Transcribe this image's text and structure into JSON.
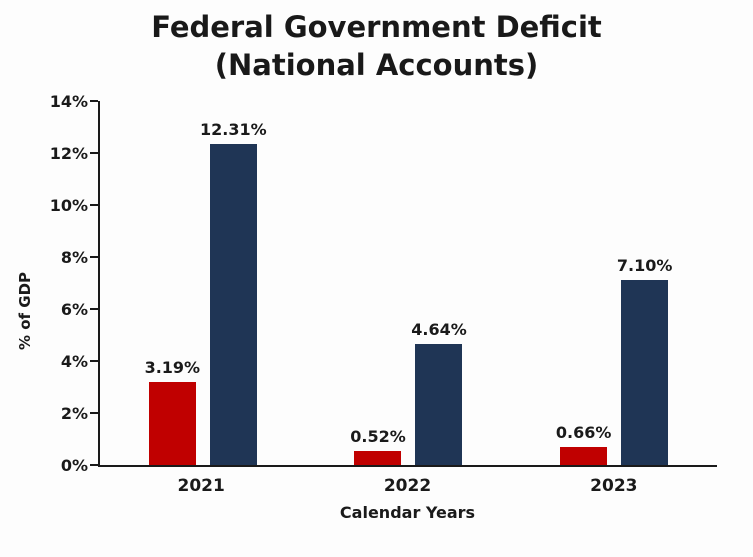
{
  "chart_data": {
    "type": "bar",
    "title_line1": "Federal Government Deficit",
    "title_line2": "(National Accounts)",
    "ylabel": "% of GDP",
    "xlabel": "Calendar Years",
    "categories": [
      "2021",
      "2022",
      "2023"
    ],
    "series": [
      {
        "name": "red-series",
        "color": "#C00000",
        "values": [
          3.19,
          0.52,
          0.66
        ],
        "labels": [
          "3.19%",
          "0.52%",
          "0.66%"
        ]
      },
      {
        "name": "navy-series",
        "color": "#1F3555",
        "values": [
          12.31,
          4.64,
          7.1
        ],
        "labels": [
          "12.31%",
          "4.64%",
          "7.10%"
        ]
      }
    ],
    "ylim": [
      0,
      14
    ],
    "yticks": [
      0,
      2,
      4,
      6,
      8,
      10,
      12,
      14
    ],
    "ytick_labels": [
      "0%",
      "2%",
      "4%",
      "6%",
      "8%",
      "10%",
      "12%",
      "14%"
    ],
    "grid": false,
    "legend": false
  },
  "colors": {
    "background": "#fdfdfd",
    "axis": "#1a1a1a",
    "text": "#191919",
    "bar_red": "#C00000",
    "bar_navy": "#1F3555"
  }
}
